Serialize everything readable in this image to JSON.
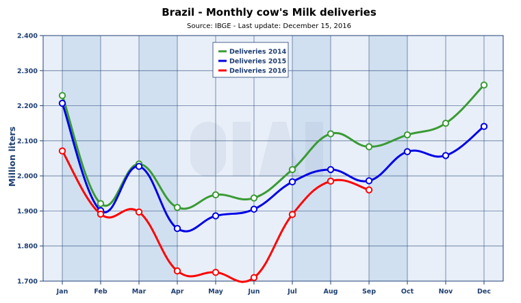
{
  "chart_data": {
    "type": "line",
    "title": "Brazil - Monthly cow's Milk deliveries",
    "subtitle": "Source: IBGE - Last update: December 15, 2016",
    "xlabel": "",
    "ylabel": "Million liters",
    "categories": [
      "Jan",
      "Feb",
      "Mar",
      "Apr",
      "May",
      "Jun",
      "Jul",
      "Aug",
      "Sep",
      "Oct",
      "Nov",
      "Dec"
    ],
    "ylim": [
      1.7,
      2.4
    ],
    "yticks": [
      1.7,
      1.8,
      1.9,
      2.0,
      2.1,
      2.2,
      2.3,
      2.4
    ],
    "ytick_labels": [
      "1.700",
      "1.800",
      "1.900",
      "2.000",
      "2.100",
      "2.200",
      "2.300",
      "2.400"
    ],
    "grid": true,
    "legend_position": "top-center",
    "series": [
      {
        "name": "Deliveries 2014",
        "color": "#3a9a34",
        "values": [
          2.229,
          1.921,
          2.034,
          1.91,
          1.946,
          1.937,
          2.018,
          2.12,
          2.083,
          2.117,
          2.15,
          2.259
        ]
      },
      {
        "name": "Deliveries 2015",
        "color": "#0000e6",
        "values": [
          2.207,
          1.901,
          2.027,
          1.85,
          1.886,
          1.905,
          1.983,
          2.018,
          1.986,
          2.069,
          2.058,
          2.141
        ]
      },
      {
        "name": "Deliveries 2016",
        "color": "#ff0000",
        "values": [
          2.071,
          1.891,
          1.897,
          1.729,
          1.725,
          1.71,
          1.89,
          1.985,
          1.96,
          null,
          null,
          null
        ]
      }
    ]
  }
}
